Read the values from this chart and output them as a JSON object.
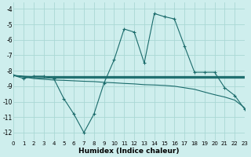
{
  "xlabel": "Humidex (Indice chaleur)",
  "xlim": [
    0,
    23
  ],
  "ylim": [
    -12.5,
    -3.6
  ],
  "yticks": [
    -12,
    -11,
    -10,
    -9,
    -8,
    -7,
    -6,
    -5,
    -4
  ],
  "xticks": [
    0,
    1,
    2,
    3,
    4,
    5,
    6,
    7,
    8,
    9,
    10,
    11,
    12,
    13,
    14,
    15,
    16,
    17,
    18,
    19,
    20,
    21,
    22,
    23
  ],
  "bg_color": "#ceeeed",
  "grid_color": "#aad8d4",
  "line_color": "#1a6b6b",
  "curve_main_x": [
    0,
    1,
    2,
    3,
    4,
    5,
    6,
    7,
    8,
    9,
    10,
    11,
    12,
    13,
    14,
    15,
    16,
    17,
    18,
    19,
    20,
    21,
    22,
    23
  ],
  "curve_main_y": [
    -8.3,
    -8.5,
    -8.35,
    -8.35,
    -8.5,
    -9.8,
    -10.8,
    -12.0,
    -10.8,
    -8.8,
    -7.3,
    -5.3,
    -5.5,
    -7.5,
    -4.3,
    -4.5,
    -4.65,
    -6.4,
    -8.1,
    -8.1,
    -8.1,
    -9.1,
    -9.6,
    -10.5
  ],
  "curve_flat1_x": [
    0,
    1,
    2,
    3,
    4,
    5,
    6,
    7,
    8,
    9,
    10,
    11,
    12,
    13,
    14,
    15,
    16,
    17,
    18,
    19,
    20,
    21,
    22,
    23
  ],
  "curve_flat1_y": [
    -8.3,
    -8.35,
    -8.37,
    -8.37,
    -8.37,
    -8.37,
    -8.37,
    -8.37,
    -8.37,
    -8.37,
    -8.37,
    -8.37,
    -8.37,
    -8.37,
    -8.37,
    -8.37,
    -8.37,
    -8.37,
    -8.37,
    -8.37,
    -8.37,
    -8.37,
    -8.37,
    -8.37
  ],
  "curve_flat2_x": [
    0,
    1,
    2,
    3,
    4,
    5,
    6,
    7,
    8,
    9,
    10,
    11,
    12,
    13,
    14,
    15,
    16,
    17,
    18,
    19,
    20,
    21,
    22,
    23
  ],
  "curve_flat2_y": [
    -8.3,
    -8.37,
    -8.4,
    -8.4,
    -8.42,
    -8.42,
    -8.42,
    -8.42,
    -8.42,
    -8.42,
    -8.42,
    -8.42,
    -8.42,
    -8.42,
    -8.42,
    -8.42,
    -8.42,
    -8.42,
    -8.42,
    -8.42,
    -8.42,
    -8.42,
    -8.42,
    -8.42
  ],
  "curve_flat3_x": [
    0,
    1,
    2,
    3,
    4,
    5,
    6,
    7,
    8,
    9,
    10,
    11,
    12,
    13,
    14,
    15,
    16,
    17,
    18,
    19,
    20,
    21,
    22,
    23
  ],
  "curve_flat3_y": [
    -8.3,
    -8.4,
    -8.45,
    -8.47,
    -8.48,
    -8.48,
    -8.48,
    -8.48,
    -8.48,
    -8.48,
    -8.48,
    -8.48,
    -8.48,
    -8.48,
    -8.48,
    -8.48,
    -8.48,
    -8.48,
    -8.48,
    -8.48,
    -8.48,
    -8.48,
    -8.48,
    -8.48
  ],
  "curve_diag_x": [
    0,
    1,
    2,
    3,
    4,
    5,
    6,
    7,
    8,
    9,
    10,
    11,
    12,
    13,
    14,
    15,
    16,
    17,
    18,
    19,
    20,
    21,
    22,
    23
  ],
  "curve_diag_y": [
    -8.3,
    -8.4,
    -8.5,
    -8.55,
    -8.6,
    -8.62,
    -8.65,
    -8.68,
    -8.7,
    -8.75,
    -8.78,
    -8.82,
    -8.85,
    -8.9,
    -8.92,
    -8.95,
    -9.0,
    -9.1,
    -9.2,
    -9.38,
    -9.55,
    -9.7,
    -9.9,
    -10.4
  ]
}
